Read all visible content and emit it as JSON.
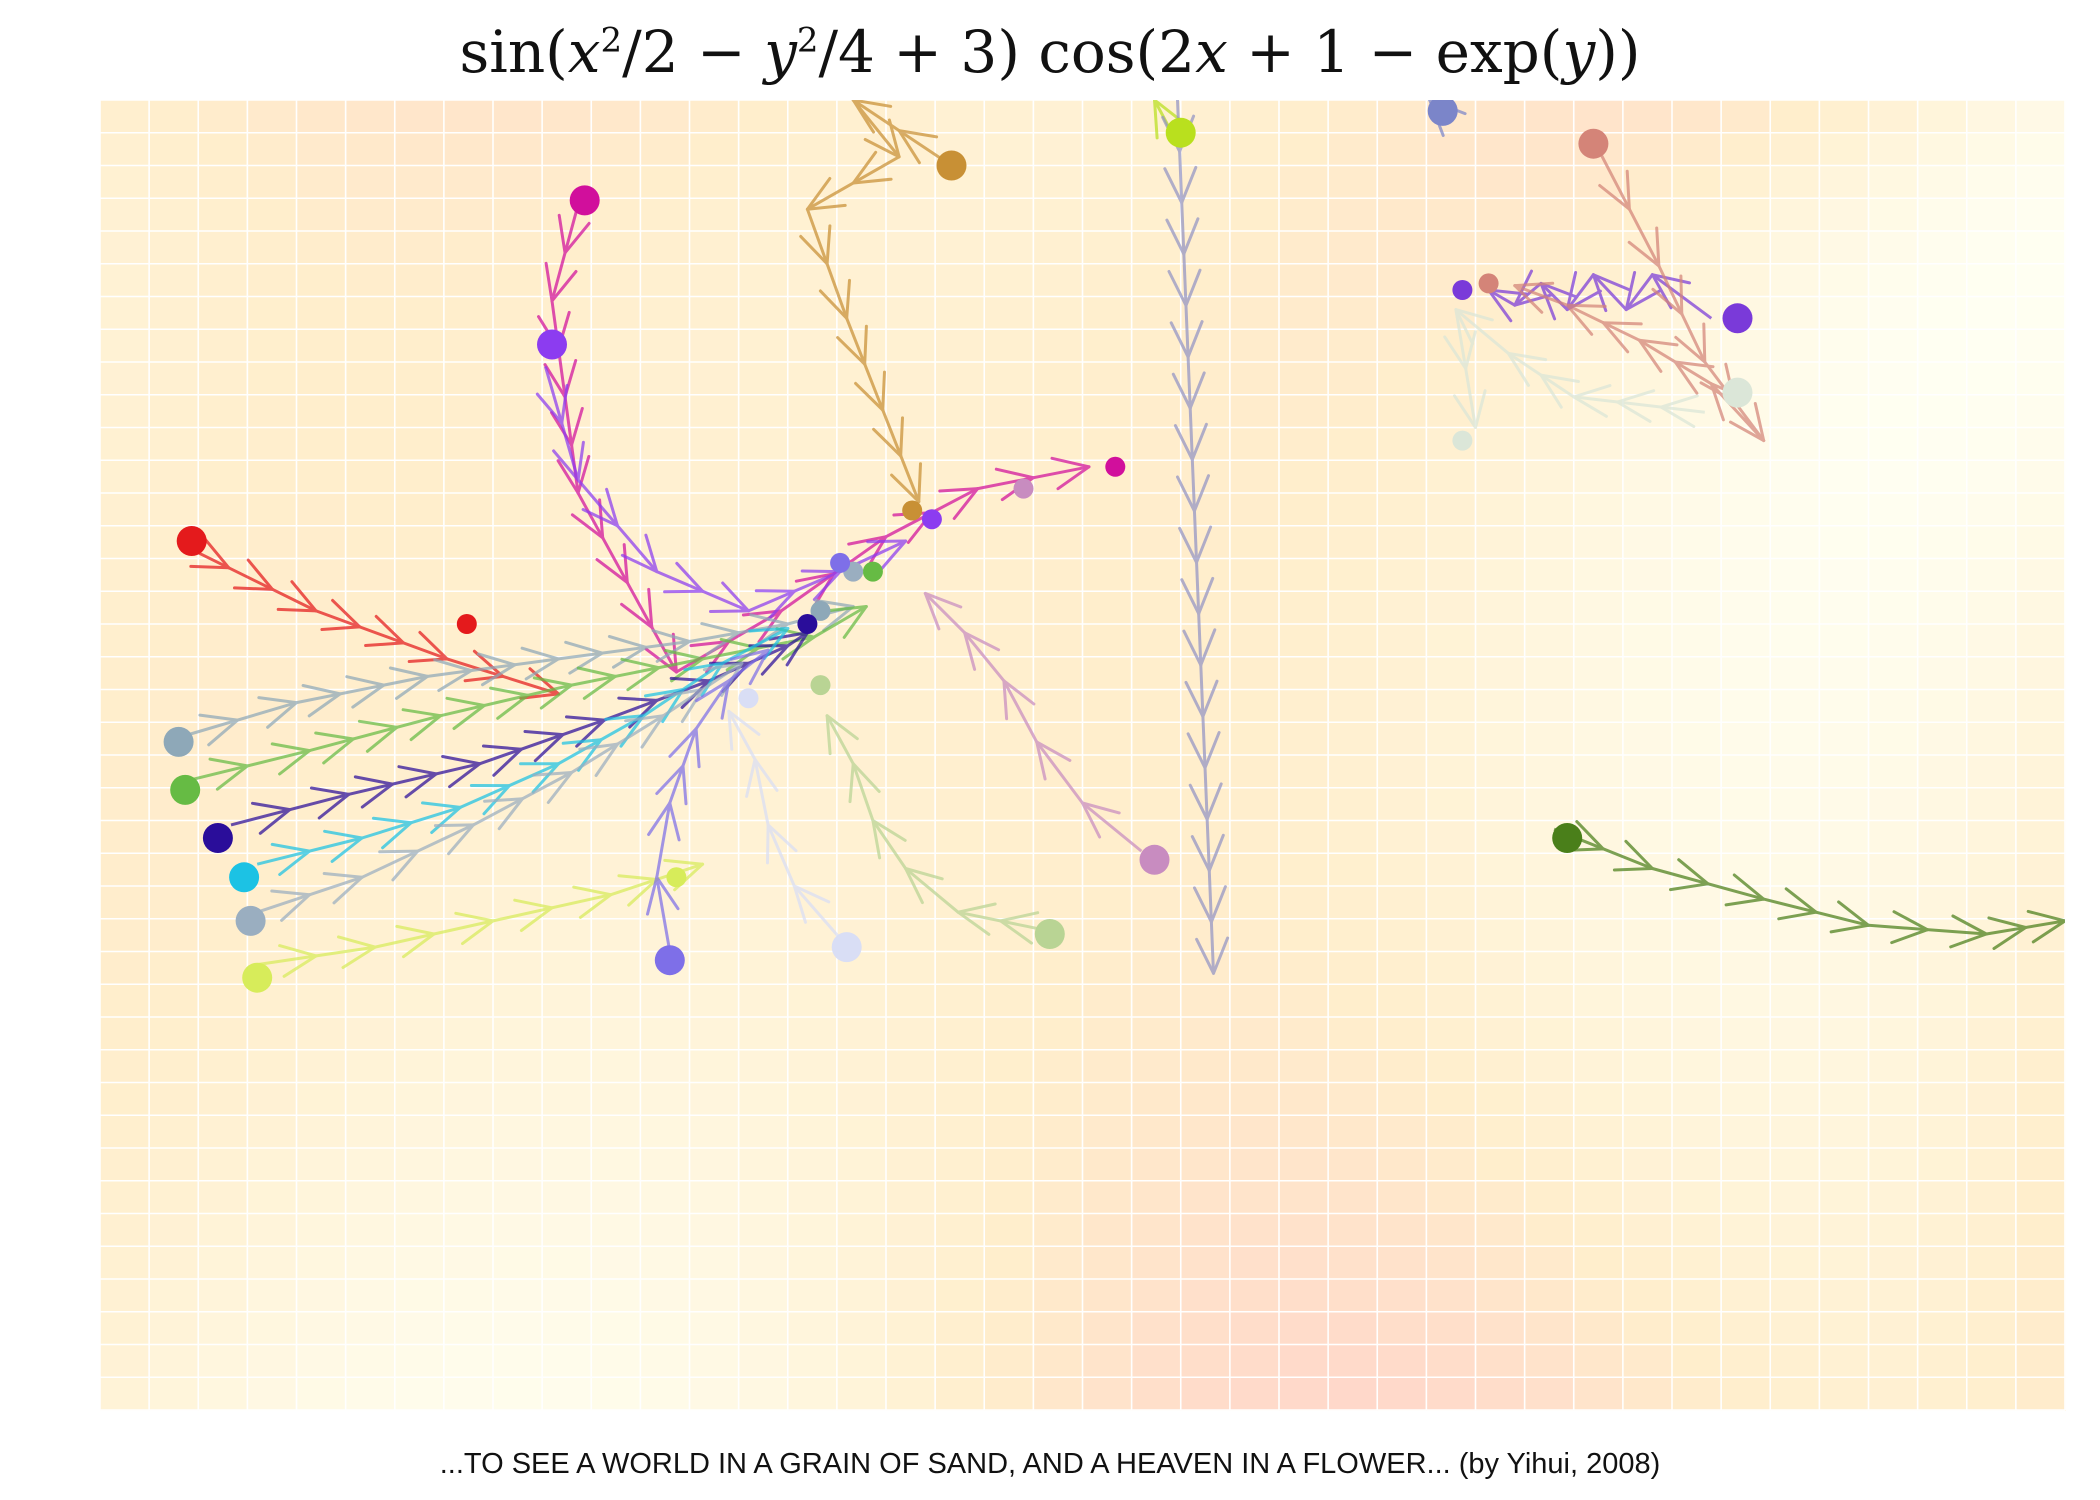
{
  "chart_data": {
    "type": "heatmap",
    "title_parts": {
      "p1": "sin(",
      "v1": "x",
      "e1": "2",
      "p2": "/2 − ",
      "v2": "y",
      "e2": "2",
      "p3": "/4 + 3) cos(2",
      "v3": "x",
      "p4": " + 1 − exp(",
      "v4": "y",
      "p5": "))"
    },
    "function": "sin(x^2/2 - y^2/4 + 3) * cos(2x + 1 - exp(y))",
    "x_range": [
      -1,
      2
    ],
    "y_range": [
      -2,
      1
    ],
    "grid": {
      "cols": 40,
      "rows": 40,
      "line_color": "#ffffff"
    },
    "colormap": {
      "low": "#ffc8c8",
      "mid": "#ffeecc",
      "high": "#fffff2"
    },
    "trajectories": [
      {
        "color": "#e41a1c",
        "points": [
          [
            -0.87,
            -0.022
          ],
          [
            -0.67,
            -0.17
          ],
          [
            -0.47,
            -0.28
          ],
          [
            -0.3,
            -0.36
          ]
        ]
      },
      {
        "color": "#d10f9c",
        "points": [
          [
            -0.27,
            0.76
          ],
          [
            -0.31,
            0.54
          ],
          [
            -0.27,
            0.1
          ],
          [
            -0.12,
            -0.31
          ],
          [
            0.04,
            -0.17
          ],
          [
            0.2,
            0.0
          ],
          [
            0.34,
            0.11
          ],
          [
            0.51,
            0.16
          ]
        ]
      },
      {
        "color": "#8c3cf0",
        "points": [
          [
            -0.32,
            0.39
          ],
          [
            -0.27,
            0.13
          ],
          [
            -0.15,
            -0.08
          ],
          [
            -0.01,
            -0.17
          ],
          [
            0.13,
            -0.08
          ],
          [
            0.23,
            -0.01
          ]
        ]
      },
      {
        "color": "#8ea8b8",
        "points": [
          [
            -0.88,
            -0.46
          ],
          [
            -0.7,
            -0.38
          ],
          [
            -0.5,
            -0.32
          ],
          [
            -0.3,
            -0.28
          ],
          [
            -0.1,
            -0.24
          ],
          [
            0.05,
            -0.2
          ],
          [
            0.15,
            -0.16
          ]
        ]
      },
      {
        "color": "#66bb44",
        "points": [
          [
            -0.87,
            -0.56
          ],
          [
            -0.68,
            -0.49
          ],
          [
            -0.48,
            -0.41
          ],
          [
            -0.28,
            -0.34
          ],
          [
            -0.08,
            -0.28
          ],
          [
            0.09,
            -0.23
          ],
          [
            0.17,
            -0.16
          ]
        ]
      },
      {
        "color": "#2a0d9a",
        "points": [
          [
            -0.8,
            -0.66
          ],
          [
            -0.62,
            -0.59
          ],
          [
            -0.42,
            -0.52
          ],
          [
            -0.23,
            -0.42
          ],
          [
            -0.07,
            -0.33
          ],
          [
            0.05,
            -0.25
          ],
          [
            0.08,
            -0.22
          ]
        ]
      },
      {
        "color": "#1cc2e4",
        "points": [
          [
            -0.76,
            -0.75
          ],
          [
            -0.6,
            -0.69
          ],
          [
            -0.45,
            -0.62
          ],
          [
            -0.3,
            -0.52
          ],
          [
            -0.17,
            -0.41
          ],
          [
            -0.05,
            -0.29
          ],
          [
            0.05,
            -0.21
          ]
        ]
      },
      {
        "color": "#9aaec0",
        "points": [
          [
            -0.76,
            -0.86
          ],
          [
            -0.6,
            -0.78
          ],
          [
            -0.43,
            -0.66
          ],
          [
            -0.28,
            -0.54
          ],
          [
            -0.14,
            -0.41
          ],
          [
            -0.02,
            -0.29
          ]
        ]
      },
      {
        "color": "#d7ec5a",
        "points": [
          [
            -0.76,
            -0.98
          ],
          [
            -0.58,
            -0.94
          ],
          [
            -0.4,
            -0.88
          ],
          [
            -0.22,
            -0.82
          ],
          [
            -0.08,
            -0.75
          ]
        ]
      },
      {
        "color": "#7e6fe8",
        "points": [
          [
            -0.13,
            -0.95
          ],
          [
            -0.15,
            -0.78
          ],
          [
            -0.13,
            -0.61
          ],
          [
            -0.09,
            -0.44
          ],
          [
            -0.04,
            -0.33
          ],
          [
            0.02,
            -0.26
          ]
        ]
      },
      {
        "color": "#d9def5",
        "points": [
          [
            0.13,
            -0.92
          ],
          [
            0.06,
            -0.8
          ],
          [
            0.02,
            -0.66
          ],
          [
            0.0,
            -0.51
          ],
          [
            -0.04,
            -0.4
          ]
        ]
      },
      {
        "color": "#b9d494",
        "points": [
          [
            0.44,
            -0.9
          ],
          [
            0.31,
            -0.86
          ],
          [
            0.23,
            -0.76
          ],
          [
            0.18,
            -0.65
          ],
          [
            0.15,
            -0.52
          ],
          [
            0.11,
            -0.41
          ]
        ]
      },
      {
        "color": "#c88cc0",
        "points": [
          [
            0.59,
            -0.72
          ],
          [
            0.5,
            -0.61
          ],
          [
            0.43,
            -0.47
          ],
          [
            0.38,
            -0.33
          ],
          [
            0.32,
            -0.22
          ],
          [
            0.26,
            -0.13
          ]
        ]
      },
      {
        "color": "#c89035",
        "points": [
          [
            0.29,
            0.86
          ],
          [
            0.15,
            1.0
          ],
          [
            0.22,
            0.87
          ],
          [
            0.08,
            0.75
          ],
          [
            0.14,
            0.5
          ],
          [
            0.25,
            0.08
          ]
        ]
      },
      {
        "color": "#b9e01e",
        "points": [
          [
            0.64,
            0.915
          ],
          [
            0.61,
            1.0
          ]
        ]
      },
      {
        "color": "#9294c4",
        "points": [
          [
            0.645,
            1.0
          ],
          [
            0.7,
            -1.0
          ]
        ]
      },
      {
        "color": "#7b85c9",
        "points": [
          [
            1.05,
            0.97
          ],
          [
            1.03,
            1.0
          ]
        ]
      },
      {
        "color": "#7a3ad9",
        "points": [
          [
            1.46,
            0.5
          ],
          [
            1.37,
            0.6
          ],
          [
            1.33,
            0.52
          ],
          [
            1.28,
            0.6
          ],
          [
            1.24,
            0.52
          ],
          [
            1.2,
            0.58
          ],
          [
            1.16,
            0.53
          ],
          [
            1.12,
            0.565
          ]
        ]
      },
      {
        "color": "#d48478",
        "points": [
          [
            1.29,
            0.88
          ],
          [
            1.38,
            0.62
          ],
          [
            1.45,
            0.4
          ],
          [
            1.54,
            0.22
          ],
          [
            1.46,
            0.35
          ],
          [
            1.35,
            0.45
          ],
          [
            1.24,
            0.53
          ],
          [
            1.16,
            0.575
          ]
        ]
      },
      {
        "color": "#dbe6d8",
        "points": [
          [
            1.45,
            0.285
          ],
          [
            1.25,
            0.32
          ],
          [
            1.15,
            0.42
          ],
          [
            1.07,
            0.52
          ],
          [
            1.1,
            0.25
          ]
        ]
      },
      {
        "color": "#4a7f1a",
        "points": [
          [
            1.22,
            -0.67
          ],
          [
            1.37,
            -0.76
          ],
          [
            1.54,
            -0.83
          ],
          [
            1.7,
            -0.89
          ],
          [
            1.88,
            -0.91
          ],
          [
            2.0,
            -0.88
          ]
        ]
      }
    ],
    "endpoints": [
      {
        "color": "#e41a1c",
        "x": -0.86,
        "y": -0.01,
        "r": 15
      },
      {
        "color": "#e41a1c",
        "x": -0.44,
        "y": -0.2,
        "r": 10
      },
      {
        "color": "#d10f9c",
        "x": -0.26,
        "y": 0.77,
        "r": 15
      },
      {
        "color": "#d10f9c",
        "x": 0.55,
        "y": 0.16,
        "r": 10
      },
      {
        "color": "#8c3cf0",
        "x": -0.31,
        "y": 0.44,
        "r": 15
      },
      {
        "color": "#8c3cf0",
        "x": 0.27,
        "y": 0.04,
        "r": 10
      },
      {
        "color": "#8ea8b8",
        "x": -0.88,
        "y": -0.47,
        "r": 15
      },
      {
        "color": "#8ea8b8",
        "x": 0.1,
        "y": -0.17,
        "r": 10
      },
      {
        "color": "#66bb44",
        "x": -0.87,
        "y": -0.58,
        "r": 15
      },
      {
        "color": "#66bb44",
        "x": 0.18,
        "y": -0.08,
        "r": 10
      },
      {
        "color": "#2a0d9a",
        "x": -0.82,
        "y": -0.69,
        "r": 15
      },
      {
        "color": "#2a0d9a",
        "x": 0.08,
        "y": -0.2,
        "r": 10
      },
      {
        "color": "#1cc2e4",
        "x": -0.78,
        "y": -0.78,
        "r": 15
      },
      {
        "color": "#9aaec0",
        "x": -0.77,
        "y": -0.88,
        "r": 15
      },
      {
        "color": "#9aaec0",
        "x": 0.15,
        "y": -0.08,
        "r": 10
      },
      {
        "color": "#d7ec5a",
        "x": -0.76,
        "y": -1.01,
        "r": 15
      },
      {
        "color": "#d7ec5a",
        "x": -0.12,
        "y": -0.78,
        "r": 10
      },
      {
        "color": "#7e6fe8",
        "x": -0.13,
        "y": -0.97,
        "r": 15
      },
      {
        "color": "#7e6fe8",
        "x": 0.13,
        "y": -0.06,
        "r": 10
      },
      {
        "color": "#d9def5",
        "x": 0.14,
        "y": -0.94,
        "r": 15
      },
      {
        "color": "#d9def5",
        "x": -0.01,
        "y": -0.37,
        "r": 10
      },
      {
        "color": "#b9d494",
        "x": 0.45,
        "y": -0.91,
        "r": 15
      },
      {
        "color": "#b9d494",
        "x": 0.1,
        "y": -0.34,
        "r": 10
      },
      {
        "color": "#c88cc0",
        "x": 0.61,
        "y": -0.74,
        "r": 15
      },
      {
        "color": "#c88cc0",
        "x": 0.41,
        "y": 0.11,
        "r": 10
      },
      {
        "color": "#c89035",
        "x": 0.3,
        "y": 0.85,
        "r": 15
      },
      {
        "color": "#c89035",
        "x": 0.24,
        "y": 0.06,
        "r": 10
      },
      {
        "color": "#b9e01e",
        "x": 0.65,
        "y": 0.925,
        "r": 15
      },
      {
        "color": "#7b85c9",
        "x": 1.05,
        "y": 0.975,
        "r": 15
      },
      {
        "color": "#7a3ad9",
        "x": 1.5,
        "y": 0.5,
        "r": 15
      },
      {
        "color": "#7a3ad9",
        "x": 1.08,
        "y": 0.565,
        "r": 10
      },
      {
        "color": "#d48478",
        "x": 1.28,
        "y": 0.9,
        "r": 15
      },
      {
        "color": "#d48478",
        "x": 1.12,
        "y": 0.58,
        "r": 10
      },
      {
        "color": "#dbe6d8",
        "x": 1.5,
        "y": 0.33,
        "r": 15
      },
      {
        "color": "#dbe6d8",
        "x": 1.08,
        "y": 0.22,
        "r": 10
      },
      {
        "color": "#4a7f1a",
        "x": 1.24,
        "y": -0.69,
        "r": 15
      }
    ]
  },
  "footer": {
    "caption": "...TO SEE A WORLD IN A GRAIN OF SAND, AND A HEAVEN IN A FLOWER... (by Yihui, 2008)"
  }
}
